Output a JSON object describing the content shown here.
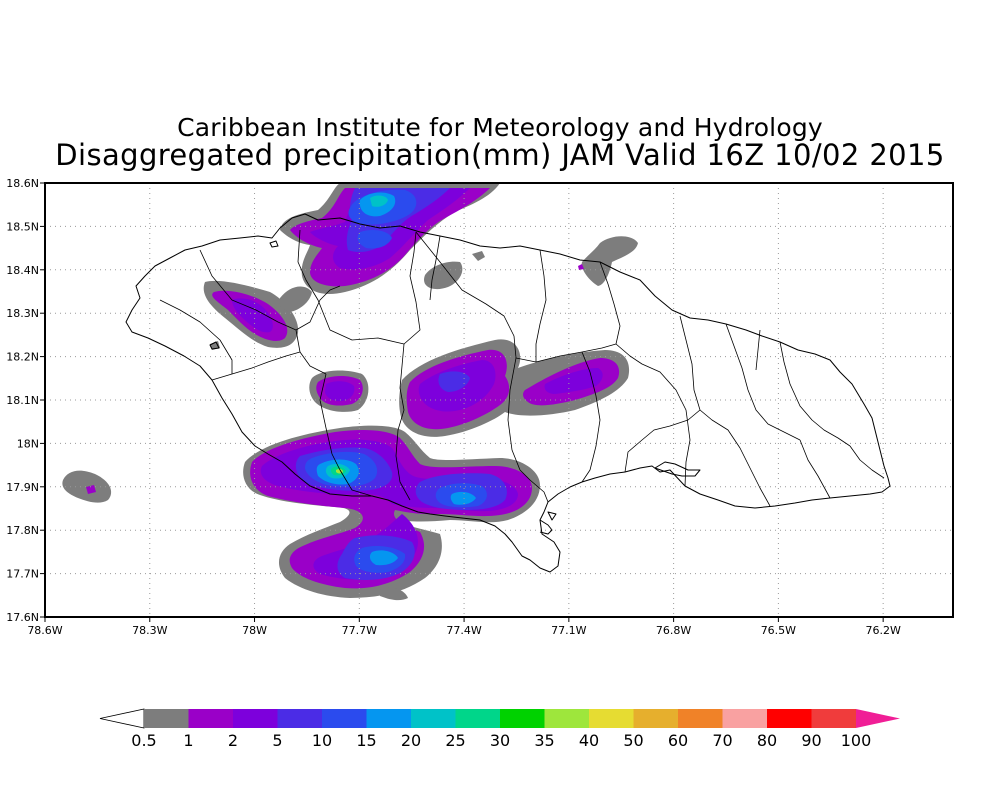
{
  "title": {
    "line1": "Caribbean Institute for Meteorology and Hydrology",
    "line2": "Disaggregated precipitation(mm) JAM Valid 16Z 10/02 2015"
  },
  "axes": {
    "x_ticks": [
      "78.6W",
      "78.3W",
      "78W",
      "77.7W",
      "77.4W",
      "77.1W",
      "76.8W",
      "76.5W",
      "76.2W"
    ],
    "y_ticks": [
      "18.6N",
      "18.5N",
      "18.4N",
      "18.3N",
      "18.2N",
      "18.1N",
      "18N",
      "17.9N",
      "17.8N",
      "17.7N",
      "17.6N"
    ],
    "lon_range": [
      -78.6,
      -76.0
    ],
    "lat_range": [
      17.6,
      18.6
    ],
    "grid": "dotted"
  },
  "colorbar": {
    "labels": [
      "0.5",
      "1",
      "2",
      "5",
      "10",
      "15",
      "20",
      "25",
      "30",
      "35",
      "40",
      "50",
      "60",
      "70",
      "80",
      "90",
      "100"
    ],
    "colors": [
      "#7d7d7d",
      "#9a00c8",
      "#7d00dc",
      "#4b2ce6",
      "#2b4bee",
      "#0596f0",
      "#00c2c8",
      "#00d68a",
      "#00d200",
      "#9ee63c",
      "#e6dc32",
      "#e6af2d",
      "#f08228",
      "#f9a1a1",
      "#ff0000",
      "#f03c3c"
    ],
    "under_color": "#ffffff",
    "over_color": "#f01e96"
  }
}
